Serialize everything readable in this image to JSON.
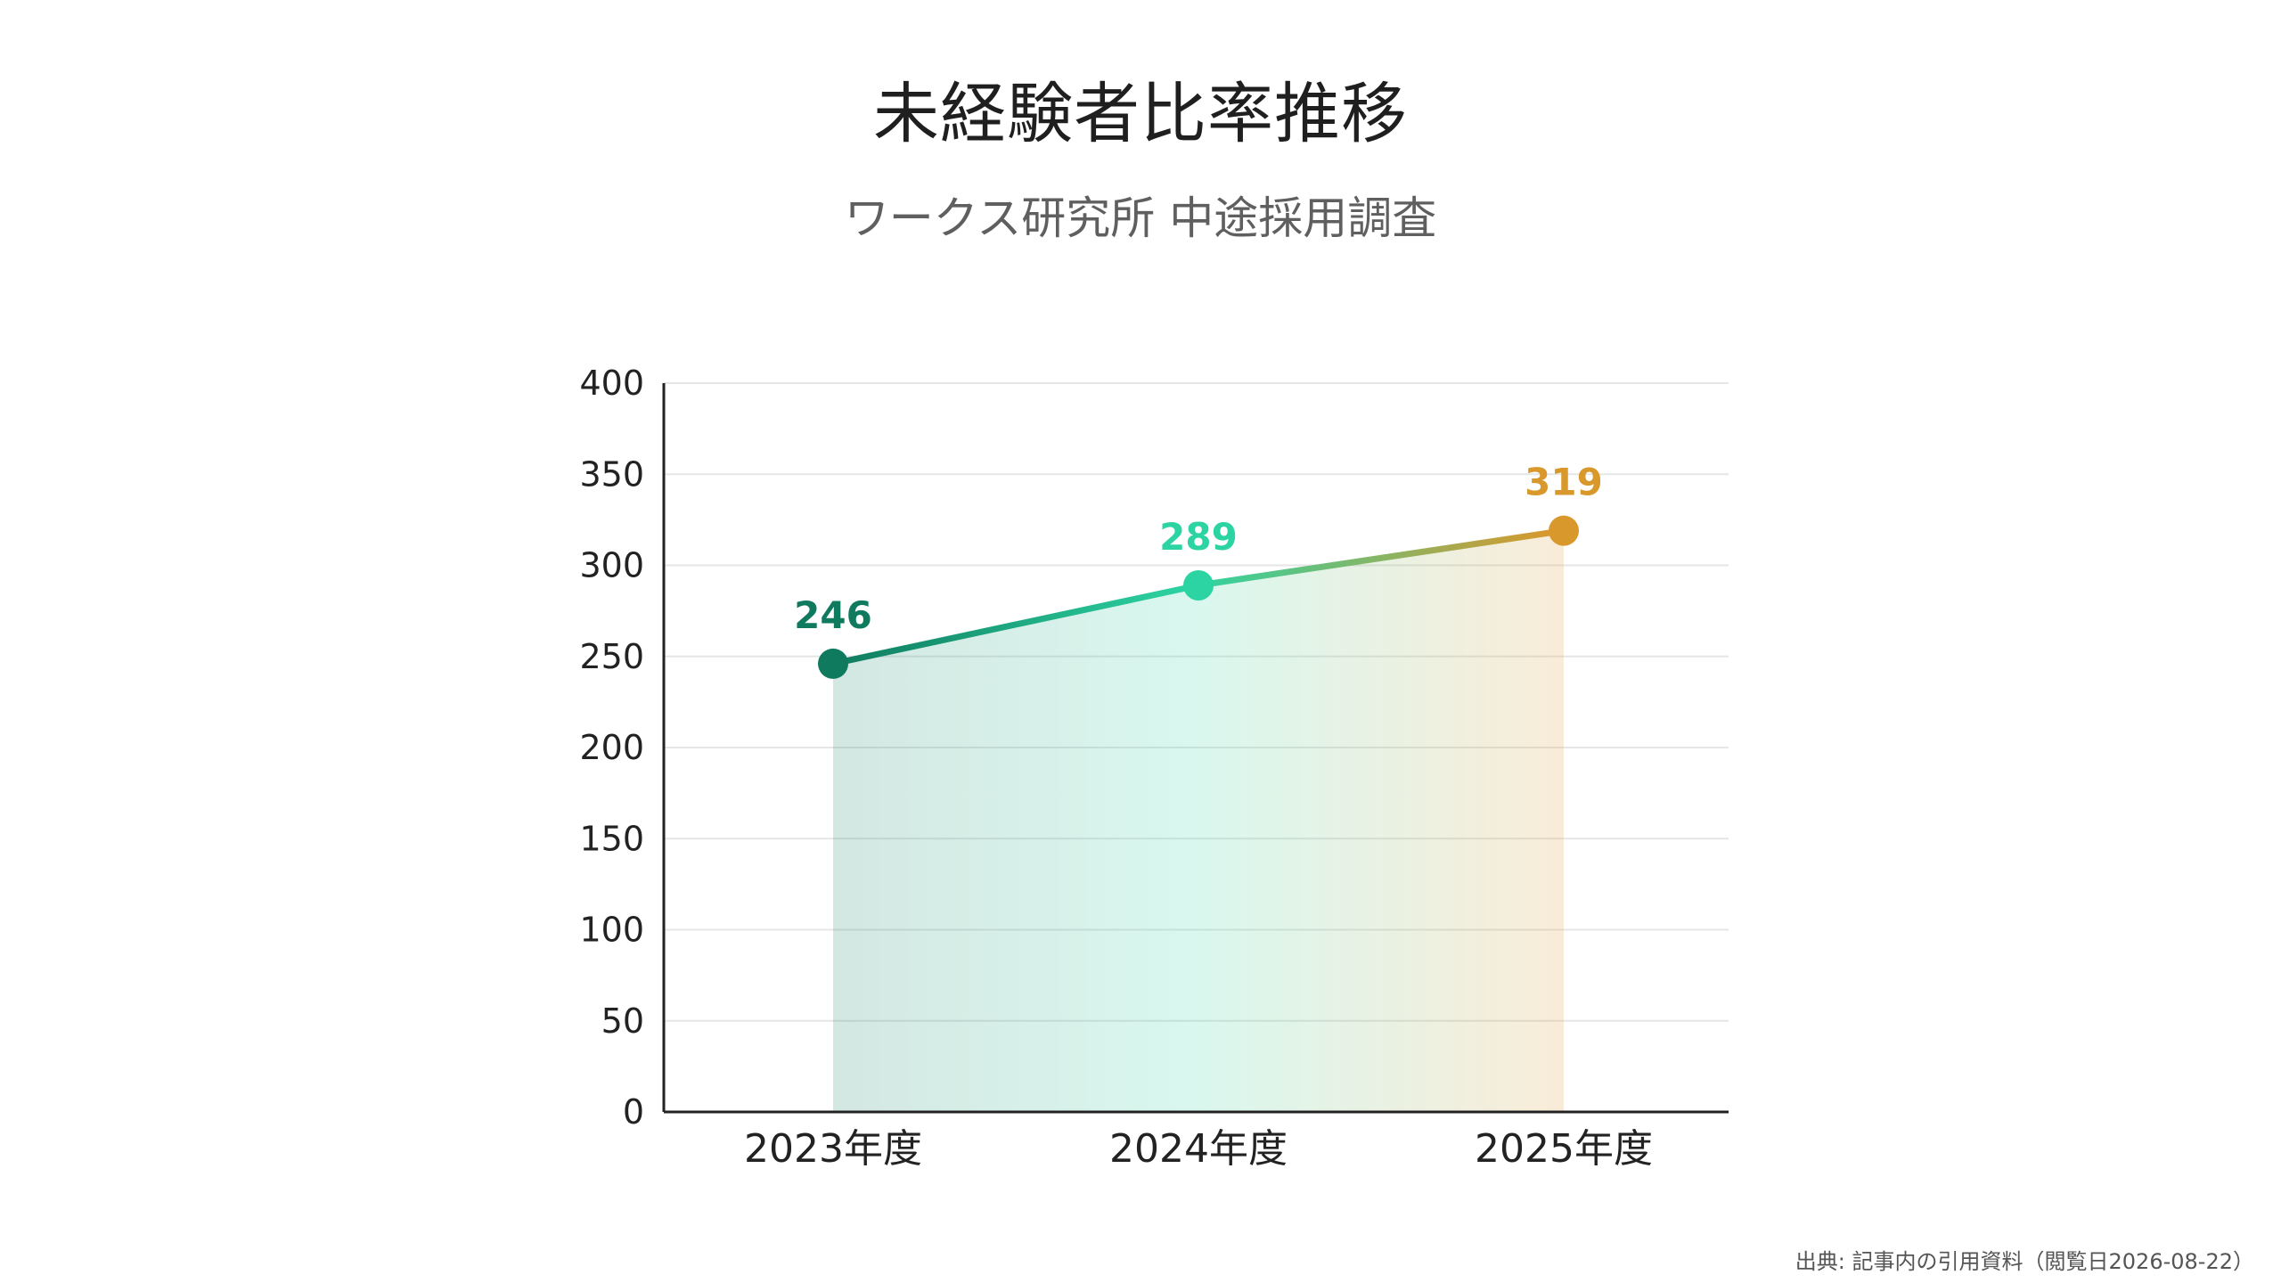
{
  "title": "未経験者比率推移",
  "subtitle": "ワークス研究所 中途採用調査",
  "source": "出典: 記事内の引用資料（閲覧日2026-08-22）",
  "colors": {
    "start": "#0f7a5e",
    "middle": "#2dd4a3",
    "end": "#d9982c",
    "grid": "#e6e6e6",
    "axis": "#222222"
  },
  "chart_data": {
    "type": "line",
    "categories": [
      "2023年度",
      "2024年度",
      "2025年度"
    ],
    "values": [
      246,
      289,
      319
    ],
    "yticks": [
      "0",
      "50",
      "100",
      "150",
      "200",
      "250",
      "300",
      "350",
      "400"
    ],
    "ylim": [
      0,
      400
    ],
    "grid": true,
    "legend": "none"
  }
}
